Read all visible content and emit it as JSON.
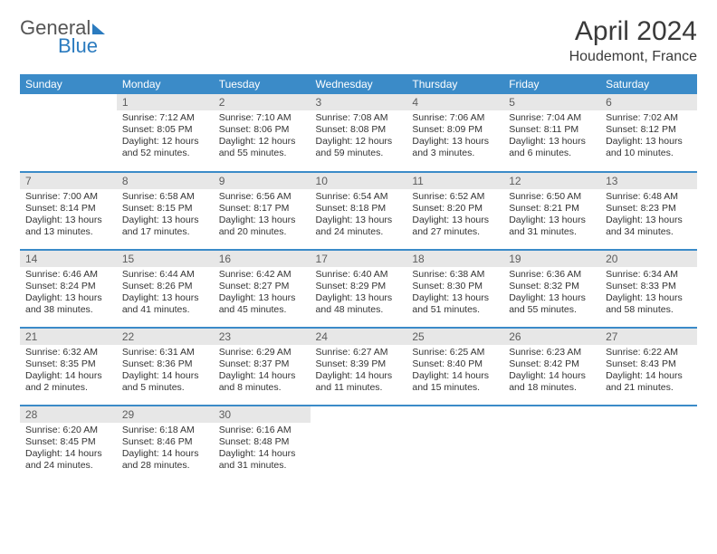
{
  "brand": {
    "part1": "General",
    "part2": "Blue"
  },
  "title": "April 2024",
  "location": "Houdemont, France",
  "colors": {
    "header_bg": "#3b8bc8",
    "header_text": "#ffffff",
    "daynum_bg": "#e7e7e7",
    "daynum_text": "#5d5d5d",
    "row_divider": "#3b8bc8",
    "brand_accent": "#2b7bbf"
  },
  "weekdays": [
    "Sunday",
    "Monday",
    "Tuesday",
    "Wednesday",
    "Thursday",
    "Friday",
    "Saturday"
  ],
  "layout": {
    "first_weekday_index": 1,
    "days_in_month": 30,
    "weeks": 5
  },
  "days": [
    {
      "n": 1,
      "sunrise": "7:12 AM",
      "sunset": "8:05 PM",
      "daylight": "12 hours and 52 minutes."
    },
    {
      "n": 2,
      "sunrise": "7:10 AM",
      "sunset": "8:06 PM",
      "daylight": "12 hours and 55 minutes."
    },
    {
      "n": 3,
      "sunrise": "7:08 AM",
      "sunset": "8:08 PM",
      "daylight": "12 hours and 59 minutes."
    },
    {
      "n": 4,
      "sunrise": "7:06 AM",
      "sunset": "8:09 PM",
      "daylight": "13 hours and 3 minutes."
    },
    {
      "n": 5,
      "sunrise": "7:04 AM",
      "sunset": "8:11 PM",
      "daylight": "13 hours and 6 minutes."
    },
    {
      "n": 6,
      "sunrise": "7:02 AM",
      "sunset": "8:12 PM",
      "daylight": "13 hours and 10 minutes."
    },
    {
      "n": 7,
      "sunrise": "7:00 AM",
      "sunset": "8:14 PM",
      "daylight": "13 hours and 13 minutes."
    },
    {
      "n": 8,
      "sunrise": "6:58 AM",
      "sunset": "8:15 PM",
      "daylight": "13 hours and 17 minutes."
    },
    {
      "n": 9,
      "sunrise": "6:56 AM",
      "sunset": "8:17 PM",
      "daylight": "13 hours and 20 minutes."
    },
    {
      "n": 10,
      "sunrise": "6:54 AM",
      "sunset": "8:18 PM",
      "daylight": "13 hours and 24 minutes."
    },
    {
      "n": 11,
      "sunrise": "6:52 AM",
      "sunset": "8:20 PM",
      "daylight": "13 hours and 27 minutes."
    },
    {
      "n": 12,
      "sunrise": "6:50 AM",
      "sunset": "8:21 PM",
      "daylight": "13 hours and 31 minutes."
    },
    {
      "n": 13,
      "sunrise": "6:48 AM",
      "sunset": "8:23 PM",
      "daylight": "13 hours and 34 minutes."
    },
    {
      "n": 14,
      "sunrise": "6:46 AM",
      "sunset": "8:24 PM",
      "daylight": "13 hours and 38 minutes."
    },
    {
      "n": 15,
      "sunrise": "6:44 AM",
      "sunset": "8:26 PM",
      "daylight": "13 hours and 41 minutes."
    },
    {
      "n": 16,
      "sunrise": "6:42 AM",
      "sunset": "8:27 PM",
      "daylight": "13 hours and 45 minutes."
    },
    {
      "n": 17,
      "sunrise": "6:40 AM",
      "sunset": "8:29 PM",
      "daylight": "13 hours and 48 minutes."
    },
    {
      "n": 18,
      "sunrise": "6:38 AM",
      "sunset": "8:30 PM",
      "daylight": "13 hours and 51 minutes."
    },
    {
      "n": 19,
      "sunrise": "6:36 AM",
      "sunset": "8:32 PM",
      "daylight": "13 hours and 55 minutes."
    },
    {
      "n": 20,
      "sunrise": "6:34 AM",
      "sunset": "8:33 PM",
      "daylight": "13 hours and 58 minutes."
    },
    {
      "n": 21,
      "sunrise": "6:32 AM",
      "sunset": "8:35 PM",
      "daylight": "14 hours and 2 minutes."
    },
    {
      "n": 22,
      "sunrise": "6:31 AM",
      "sunset": "8:36 PM",
      "daylight": "14 hours and 5 minutes."
    },
    {
      "n": 23,
      "sunrise": "6:29 AM",
      "sunset": "8:37 PM",
      "daylight": "14 hours and 8 minutes."
    },
    {
      "n": 24,
      "sunrise": "6:27 AM",
      "sunset": "8:39 PM",
      "daylight": "14 hours and 11 minutes."
    },
    {
      "n": 25,
      "sunrise": "6:25 AM",
      "sunset": "8:40 PM",
      "daylight": "14 hours and 15 minutes."
    },
    {
      "n": 26,
      "sunrise": "6:23 AM",
      "sunset": "8:42 PM",
      "daylight": "14 hours and 18 minutes."
    },
    {
      "n": 27,
      "sunrise": "6:22 AM",
      "sunset": "8:43 PM",
      "daylight": "14 hours and 21 minutes."
    },
    {
      "n": 28,
      "sunrise": "6:20 AM",
      "sunset": "8:45 PM",
      "daylight": "14 hours and 24 minutes."
    },
    {
      "n": 29,
      "sunrise": "6:18 AM",
      "sunset": "8:46 PM",
      "daylight": "14 hours and 28 minutes."
    },
    {
      "n": 30,
      "sunrise": "6:16 AM",
      "sunset": "8:48 PM",
      "daylight": "14 hours and 31 minutes."
    }
  ],
  "labels": {
    "sunrise_prefix": "Sunrise: ",
    "sunset_prefix": "Sunset: ",
    "daylight_prefix": "Daylight: "
  }
}
